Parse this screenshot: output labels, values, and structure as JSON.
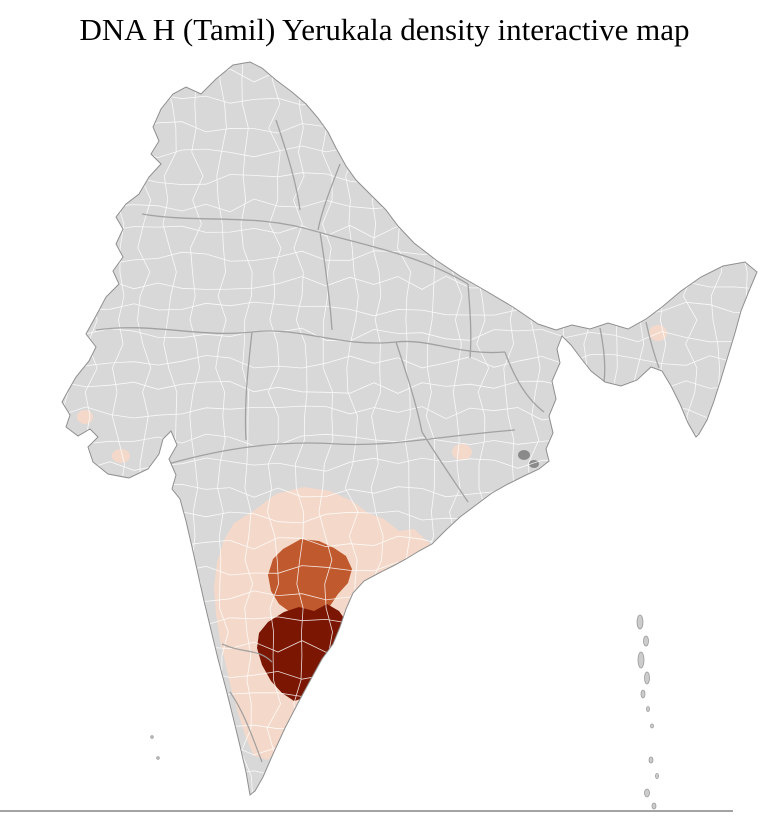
{
  "title": "DNA H (Tamil) Yerukala density interactive map",
  "map": {
    "label": "India district-level choropleth",
    "colors": {
      "background": "#ffffff",
      "land": "#d8d8d8",
      "district_border": "#ffffff",
      "state_border": "#9c9c9c",
      "coast_outline": "#8f8f8f",
      "density_high": "#7b1602",
      "density_mid": "#c05a2e",
      "density_low": "#f4d9ca",
      "dark_district": "#8a8a8a",
      "island": "#cccccc",
      "island_stroke": "#9a9a9a"
    }
  }
}
